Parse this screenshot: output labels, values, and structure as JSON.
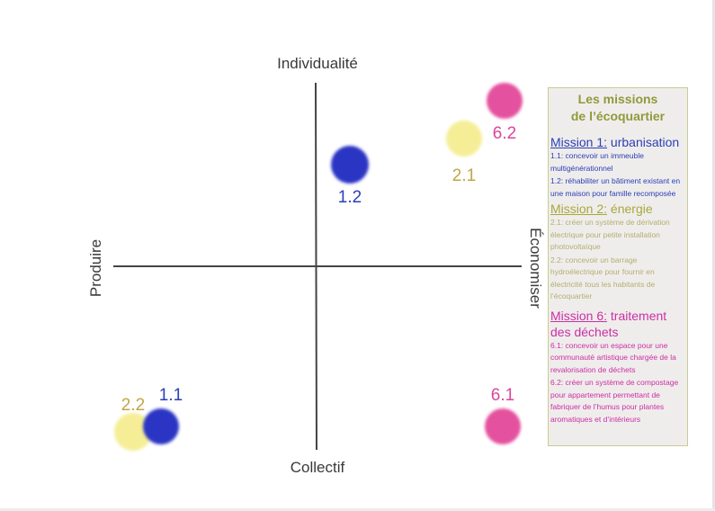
{
  "axes": {
    "top": "Individualité",
    "bottom": "Collectif",
    "left": "Produire",
    "right": "Économiser"
  },
  "colors": {
    "mission1": "#2a35c4",
    "mission2": "#f5ee96",
    "mission6": "#e4519f",
    "axis": "#444444"
  },
  "points": [
    {
      "id": "1.2",
      "label": "1.2",
      "mission": "mission1",
      "color": "#2a35c4",
      "label_color": "#2a3fb8"
    },
    {
      "id": "2.1",
      "label": "2.1",
      "mission": "mission2",
      "color": "#f5ee96",
      "label_color": "#c3a445"
    },
    {
      "id": "6.2",
      "label": "6.2",
      "mission": "mission6",
      "color": "#e4519f",
      "label_color": "#d9469b"
    },
    {
      "id": "1.1",
      "label": "1.1",
      "mission": "mission1",
      "color": "#2a35c4",
      "label_color": "#2a3fb8"
    },
    {
      "id": "2.2",
      "label": "2.2",
      "mission": "mission2",
      "color": "#f5ee96",
      "label_color": "#c3a445"
    },
    {
      "id": "6.1",
      "label": "6.1",
      "mission": "mission6",
      "color": "#e4519f",
      "label_color": "#d9469b"
    }
  ],
  "legend": {
    "title_line1": "Les missions",
    "title_line2": "de l’écoquartier",
    "missions": [
      {
        "key": "Mission 1:",
        "name": "urbanisation",
        "items": [
          "1.1: concevoir un immeuble multigénérationnel",
          "1.2: réhabiliter un bâtiment existant en une maison pour famille recomposée"
        ]
      },
      {
        "key": "Mission 2:",
        "name": "énergie",
        "items": [
          "2.1: créer un système de dérivation électrique pour petite installation photovoltaïque",
          "2.2: concevoir un barrage hydroélectrique pour fournir en électricité tous les habitants de l’écoquartier"
        ]
      },
      {
        "key": "Mission 6:",
        "name": "traitement des déchets",
        "items": [
          "6.1: concevoir un espace pour une communauté artistique chargée de la revalorisation de déchets",
          "6.2: créer un système de compostage pour appartement permettant de fabriquer de l’humus pour plantes aromatiques et d’intérieurs"
        ]
      }
    ]
  }
}
